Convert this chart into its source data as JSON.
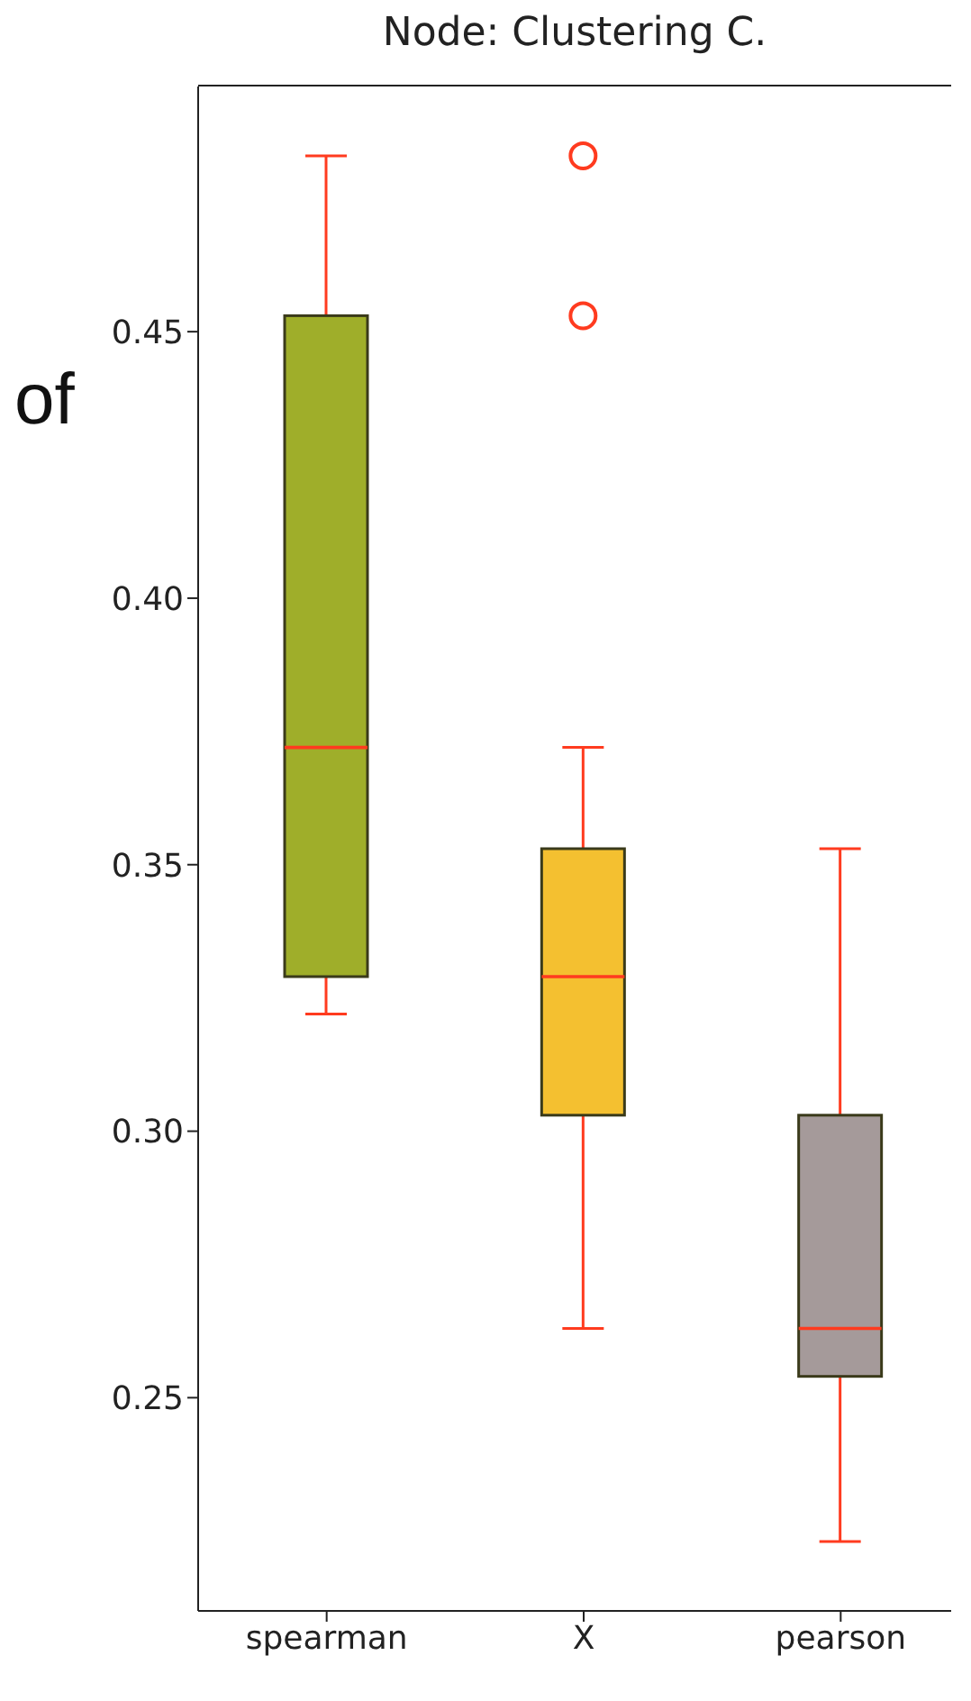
{
  "chart_data": {
    "type": "box",
    "title": "Node: Clustering C.",
    "categories": [
      "spearman",
      "X",
      "pearson"
    ],
    "boxes": [
      {
        "low": 0.322,
        "q1": 0.329,
        "median": 0.372,
        "q3": 0.453,
        "high": 0.483
      },
      {
        "low": 0.263,
        "q1": 0.303,
        "median": 0.329,
        "q3": 0.353,
        "high": 0.372,
        "outliers": [
          0.483,
          0.453
        ]
      },
      {
        "low": 0.223,
        "q1": 0.254,
        "median": 0.263,
        "q3": 0.303,
        "high": 0.353
      }
    ],
    "colors": [
      "#9fae2a",
      "#f4c030",
      "#a59a9a"
    ],
    "ylim": [
      0.21,
      0.496
    ],
    "yticks": [
      {
        "value": 0.25,
        "label": "0.25"
      },
      {
        "value": 0.3,
        "label": "0.30"
      },
      {
        "value": 0.35,
        "label": "0.35"
      },
      {
        "value": 0.4,
        "label": "0.40"
      },
      {
        "value": 0.45,
        "label": "0.45"
      }
    ],
    "annotations": [
      "of"
    ],
    "grid": false,
    "legend": false
  }
}
